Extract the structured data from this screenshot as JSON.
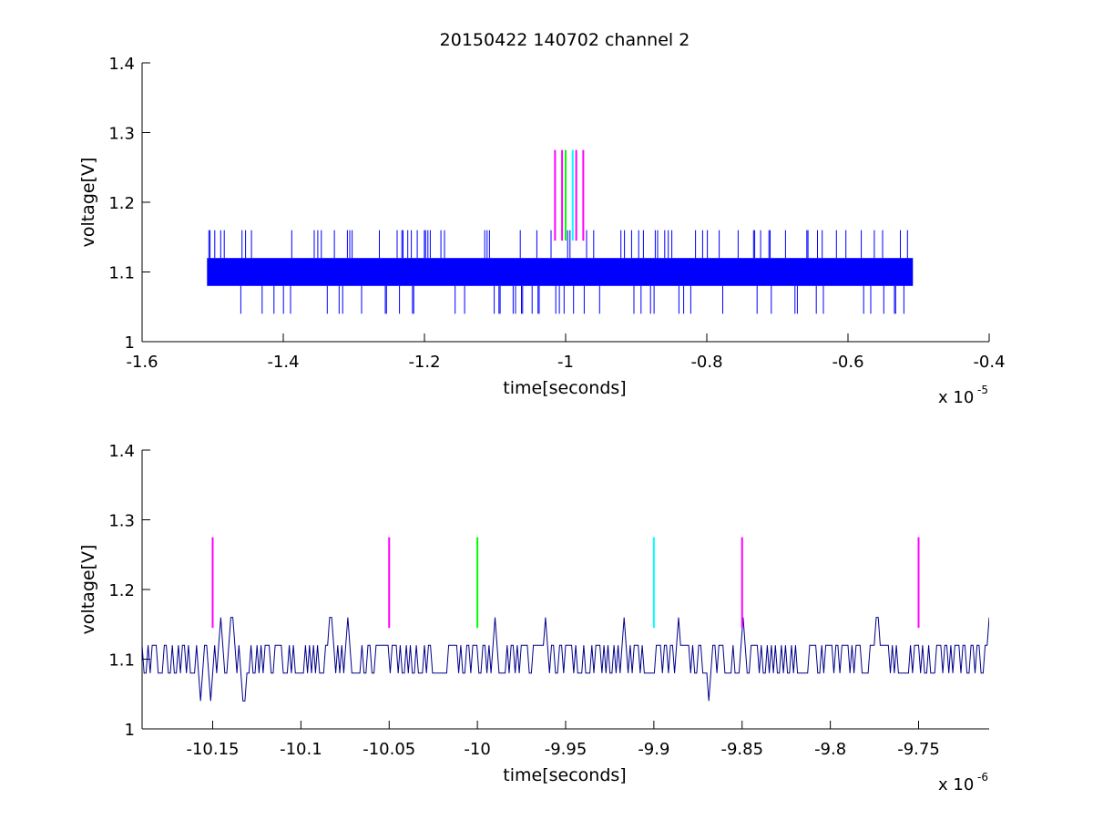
{
  "figure": {
    "title": "20150422 140702 channel 2"
  },
  "chart_data": [
    {
      "type": "line",
      "title": "20150422 140702 channel 2",
      "xlabel": "time[seconds]",
      "ylabel": "voltage[V]",
      "xlim": [
        -1.6,
        -0.4
      ],
      "ylim": [
        1,
        1.4
      ],
      "x_multiplier_label": "x 10",
      "x_multiplier_exponent": "-5",
      "xticks": [
        -1.6,
        -1.4,
        -1.2,
        -1,
        -0.8,
        -0.6,
        -0.4
      ],
      "xtick_labels": [
        "-1.6",
        "-1.4",
        "-1.2",
        "-1",
        "-0.8",
        "-0.6",
        "-0.4"
      ],
      "yticks": [
        1,
        1.1,
        1.2,
        1.3,
        1.4
      ],
      "ytick_labels": [
        "1",
        "1.1",
        "1.2",
        "1.3",
        "1.4"
      ],
      "series": [
        {
          "color": "#0000ff",
          "x_range": [
            -1.508,
            -0.508
          ],
          "band": [
            1.08,
            1.12
          ],
          "spike_high": 1.16,
          "spike_low": 1.04
        }
      ],
      "markers": [
        {
          "x": -1.015,
          "y": [
            1.145,
            1.275
          ],
          "color": "#ff00ff"
        },
        {
          "x": -1.005,
          "y": [
            1.145,
            1.275
          ],
          "color": "#ff00ff"
        },
        {
          "x": -1.0,
          "y": [
            1.145,
            1.275
          ],
          "color": "#00ff00"
        },
        {
          "x": -0.99,
          "y": [
            1.145,
            1.275
          ],
          "color": "#00ffff"
        },
        {
          "x": -0.985,
          "y": [
            1.145,
            1.275
          ],
          "color": "#ff00ff"
        },
        {
          "x": -0.975,
          "y": [
            1.145,
            1.275
          ],
          "color": "#ff00ff"
        }
      ]
    },
    {
      "type": "line",
      "xlabel": "time[seconds]",
      "ylabel": "voltage[V]",
      "xlim": [
        -10.19,
        -9.71
      ],
      "ylim": [
        1,
        1.4
      ],
      "x_multiplier_label": "x 10",
      "x_multiplier_exponent": "-6",
      "xticks": [
        -10.15,
        -10.1,
        -10.05,
        -10,
        -9.95,
        -9.9,
        -9.85,
        -9.8,
        -9.75
      ],
      "xtick_labels": [
        "-10.15",
        "-10.1",
        "-10.05",
        "-10",
        "-9.95",
        "-9.9",
        "-9.85",
        "-9.8",
        "-9.75"
      ],
      "yticks": [
        1,
        1.1,
        1.2,
        1.3,
        1.4
      ],
      "ytick_labels": [
        "1",
        "1.1",
        "1.2",
        "1.3",
        "1.4"
      ],
      "series": [
        {
          "color": "#00008b",
          "x_range": [
            -10.19,
            -9.71
          ],
          "levels": [
            1.04,
            1.08,
            1.12,
            1.16
          ]
        }
      ],
      "markers": [
        {
          "x": -10.15,
          "y": [
            1.145,
            1.275
          ],
          "color": "#ff00ff"
        },
        {
          "x": -10.05,
          "y": [
            1.145,
            1.275
          ],
          "color": "#ff00ff"
        },
        {
          "x": -10.0,
          "y": [
            1.145,
            1.275
          ],
          "color": "#00ff00"
        },
        {
          "x": -9.9,
          "y": [
            1.145,
            1.275
          ],
          "color": "#00ffff"
        },
        {
          "x": -9.85,
          "y": [
            1.145,
            1.275
          ],
          "color": "#ff00ff"
        },
        {
          "x": -9.75,
          "y": [
            1.145,
            1.275
          ],
          "color": "#ff00ff"
        }
      ]
    }
  ]
}
